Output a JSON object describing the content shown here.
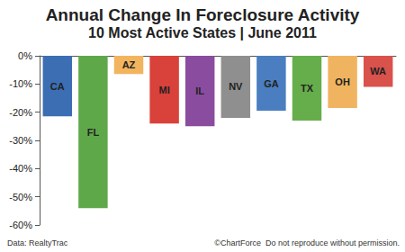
{
  "chart_data": {
    "type": "bar",
    "title": "Annual Change In Foreclosure Activity",
    "subtitle": "10 Most Active States | June 2011",
    "categories": [
      "CA",
      "FL",
      "AZ",
      "MI",
      "IL",
      "NV",
      "GA",
      "TX",
      "OH",
      "WA"
    ],
    "values": [
      -21.5,
      -54,
      -6.5,
      -24,
      -25,
      -22,
      -19.5,
      -23,
      -18.5,
      -11
    ],
    "colors": [
      "#3c6eb4",
      "#5fa84a",
      "#f2b45e",
      "#d9413b",
      "#8a4c9e",
      "#8f8f8f",
      "#4a7ec0",
      "#66ad4c",
      "#f0b460",
      "#d9524c"
    ],
    "ylim": [
      -60,
      0
    ],
    "yticks": [
      {
        "value": -60,
        "label": "-60%"
      },
      {
        "value": -50,
        "label": "-50%"
      },
      {
        "value": -40,
        "label": "-40%"
      },
      {
        "value": -30,
        "label": "-30%"
      },
      {
        "value": -20,
        "label": "-20%"
      },
      {
        "value": -10,
        "label": "-10%"
      },
      {
        "value": 0,
        "label": "0%"
      }
    ],
    "grid": false,
    "annotations": [
      "Data: RealtyTrac",
      "©ChartForce  Do not reproduce without permission."
    ]
  }
}
